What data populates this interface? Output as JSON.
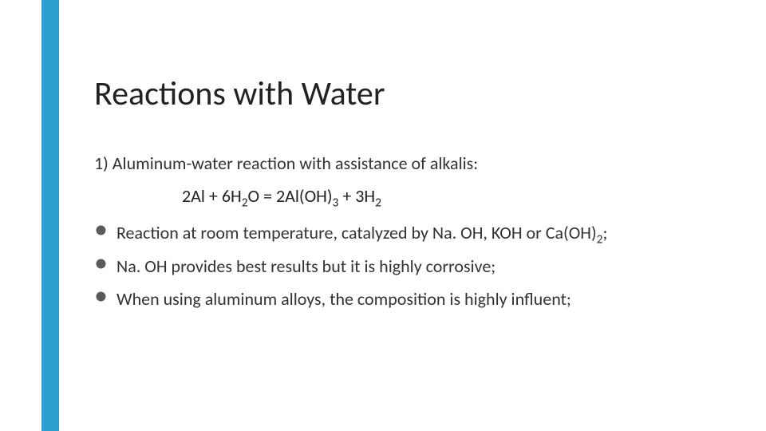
{
  "slide": {
    "accent_color": "#2f9fd0",
    "background_color": "#ffffff",
    "text_color": "#2b2b2b",
    "title": "Reactions with Water",
    "intro": "1) Aluminum-water reaction with assistance of alkalis:",
    "equation_html": "2Al + 6H<sub>2</sub>O = 2Al(OH)<sub>3</sub> + 3H<sub>2</sub>",
    "bullets": [
      "Reaction at room temperature, catalyzed by Na. OH, KOH or Ca(OH)<sub>2</sub>;",
      "Na. OH provides best results but it is highly corrosive;",
      "When using aluminum alloys, the composition is highly influent;"
    ],
    "title_fontsize": 42,
    "body_fontsize": 22
  }
}
